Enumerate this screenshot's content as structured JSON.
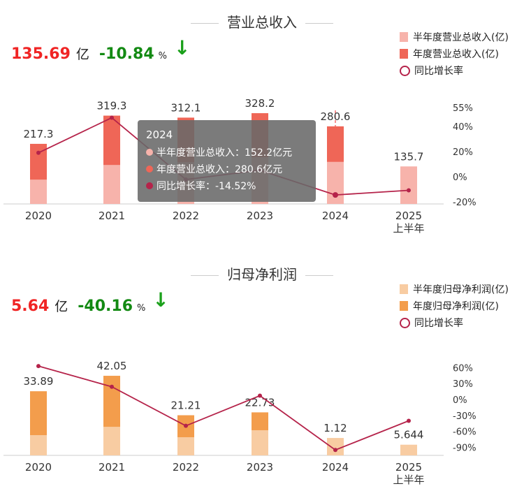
{
  "colors": {
    "rev_half": "#f7b3ab",
    "rev_year": "#ef6657",
    "np_half": "#f8cca2",
    "np_year": "#f39d4c",
    "growth": "#b5234a"
  },
  "revenue": {
    "title": "营业总收入",
    "kpi": {
      "value": "135.69",
      "unit": "亿",
      "change": "-10.84",
      "pct": "%",
      "arrow": "↓"
    },
    "legend": [
      "半年度营业总收入(亿)",
      "年度营业总收入(亿)",
      "同比增长率"
    ],
    "tooltip": {
      "title": "2024",
      "rows": [
        "半年度营业总收入：152.2亿元",
        "年度营业总收入：280.6亿元",
        "同比增长率：-14.52%"
      ]
    }
  },
  "profit": {
    "title": "归母净利润",
    "kpi": {
      "value": "5.64",
      "unit": "亿",
      "change": "-40.16",
      "pct": "%",
      "arrow": "↓"
    },
    "legend": [
      "半年度归母净利润(亿)",
      "年度归母净利润(亿)",
      "同比增长率"
    ]
  },
  "chart_data": [
    {
      "type": "bar",
      "title": "营业总收入",
      "categories": [
        "2020",
        "2021",
        "2022",
        "2023",
        "2024",
        "2025\n上半年"
      ],
      "series": [
        {
          "name": "半年度营业总收入(亿)",
          "values": [
            88,
            141,
            151,
            169,
            152.2,
            135.7
          ]
        },
        {
          "name": "年度营业总收入(亿)",
          "values": [
            217.3,
            319.3,
            312.1,
            328.2,
            280.6,
            null
          ]
        },
        {
          "name": "同比增长率",
          "type": "line",
          "values": [
            19,
            46.94,
            -2.25,
            5.16,
            -14.52,
            -10.84
          ]
        }
      ],
      "labels": [
        "217.3",
        "319.3",
        "312.1",
        "328.2",
        "280.6",
        "135.7"
      ],
      "y2ticks": [
        "55%",
        "40%",
        "20%",
        "0%",
        "-20%"
      ],
      "y2tickvals": [
        55,
        40,
        20,
        0,
        -20
      ]
    },
    {
      "type": "bar",
      "title": "归母净利润",
      "categories": [
        "2020",
        "2021",
        "2022",
        "2023",
        "2024",
        "2025\n上半年"
      ],
      "series": [
        {
          "name": "半年度归母净利润(亿)",
          "values": [
            10.7,
            15.1,
            9.6,
            13.3,
            9.2,
            5.644
          ]
        },
        {
          "name": "年度归母净利润(亿)",
          "values": [
            33.89,
            42.05,
            21.21,
            22.73,
            1.12,
            null
          ]
        },
        {
          "name": "同比增长率",
          "type": "line",
          "values": [
            63,
            24.08,
            -49.56,
            7.17,
            -95.07,
            -40.16
          ]
        }
      ],
      "labels": [
        "33.89",
        "42.05",
        "21.21",
        "22.73",
        "1.12",
        "5.644"
      ],
      "y2ticks": [
        "60%",
        "30%",
        "0%",
        "-30%",
        "-60%",
        "-90%"
      ],
      "y2tickvals": [
        60,
        30,
        0,
        -30,
        -60,
        -90
      ]
    }
  ]
}
